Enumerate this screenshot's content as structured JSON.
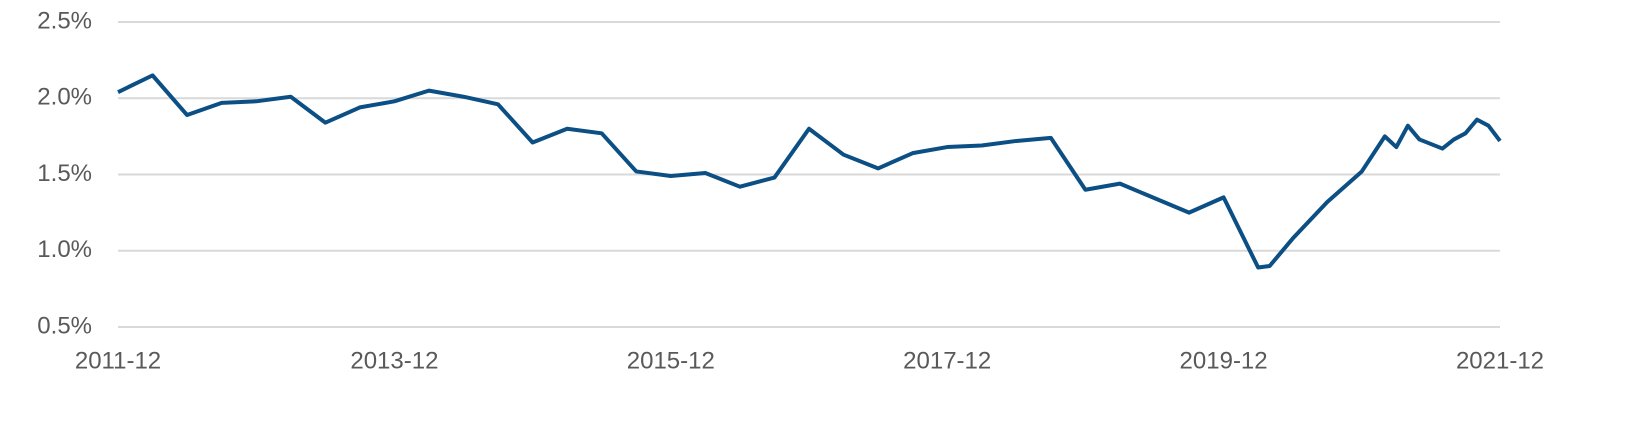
{
  "chart_data": {
    "type": "line",
    "x": [
      "2011-12",
      "2012-03",
      "2012-06",
      "2012-09",
      "2012-12",
      "2013-03",
      "2013-06",
      "2013-09",
      "2013-12",
      "2014-03",
      "2014-06",
      "2014-09",
      "2014-12",
      "2015-03",
      "2015-06",
      "2015-09",
      "2015-12",
      "2016-03",
      "2016-06",
      "2016-09",
      "2016-12",
      "2017-03",
      "2017-06",
      "2017-09",
      "2017-12",
      "2018-03",
      "2018-06",
      "2018-09",
      "2018-12",
      "2019-03",
      "2019-09",
      "2019-12",
      "2020-03",
      "2020-04",
      "2020-06",
      "2020-09",
      "2020-12",
      "2021-02",
      "2021-03",
      "2021-04",
      "2021-05",
      "2021-07",
      "2021-08",
      "2021-09",
      "2021-10",
      "2021-11",
      "2021-12"
    ],
    "series": [
      {
        "color": "#0b4f84",
        "values": [
          2.04,
          2.15,
          1.89,
          1.97,
          1.98,
          2.01,
          1.84,
          1.94,
          1.98,
          2.05,
          2.01,
          1.96,
          1.71,
          1.8,
          1.77,
          1.52,
          1.49,
          1.51,
          1.42,
          1.48,
          1.8,
          1.63,
          1.54,
          1.64,
          1.68,
          1.69,
          1.72,
          1.74,
          1.4,
          1.44,
          1.25,
          1.35,
          0.89,
          0.9,
          1.08,
          1.32,
          1.52,
          1.75,
          1.68,
          1.82,
          1.73,
          1.67,
          1.73,
          1.77,
          1.86,
          1.82,
          1.72
        ]
      }
    ],
    "xlim": [
      "2011-12",
      "2021-12"
    ],
    "xticks": [
      "2011-12",
      "2013-12",
      "2015-12",
      "2017-12",
      "2019-12",
      "2021-12"
    ],
    "ylim": [
      0.5,
      2.5
    ],
    "yticks": [
      {
        "value": 0.5,
        "label": "0.5%"
      },
      {
        "value": 1.0,
        "label": "1.0%"
      },
      {
        "value": 1.5,
        "label": "1.5%"
      },
      {
        "value": 2.0,
        "label": "2.0%"
      },
      {
        "value": 2.5,
        "label": "2.5%"
      }
    ],
    "grid": true
  }
}
